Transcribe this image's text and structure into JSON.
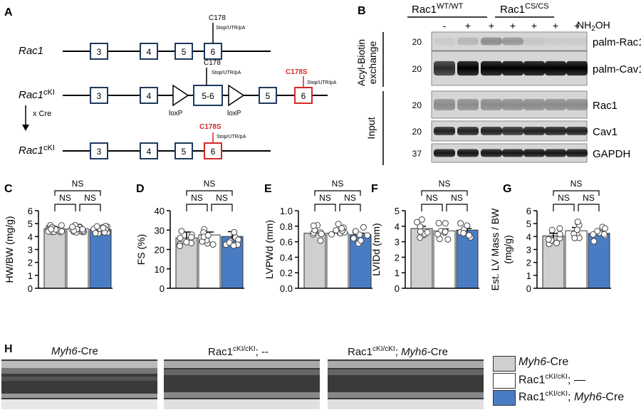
{
  "panels": {
    "A": "A",
    "B": "B",
    "C": "C",
    "D": "D",
    "E": "E",
    "F": "F",
    "G": "G",
    "H": "H"
  },
  "panel_a": {
    "rows": [
      {
        "gene": "Rac1",
        "sup": "",
        "exons": [
          "3",
          "4",
          "5",
          "6"
        ],
        "c178": "C178",
        "stop": "Stop/UTR/pA"
      },
      {
        "gene": "Rac1",
        "sup": "cKI",
        "exons": [
          "3",
          "4",
          "5-6",
          "5",
          "6"
        ],
        "c178": "C178",
        "stop": "Stop/UTR/pA",
        "c178s": "C178S",
        "stop2": "Stop/UTR/pA",
        "loxp": "loxP"
      },
      {
        "gene": "Rac1",
        "sup": "cKI",
        "exons": [
          "3",
          "4",
          "5",
          "6"
        ],
        "c178s": "C178S",
        "stop": "Stop/UTR/pA"
      }
    ],
    "cross": "x Cre"
  },
  "panel_b": {
    "group1": {
      "base": "Rac1",
      "sup": "WT/WT"
    },
    "group2": {
      "base": "Rac1",
      "sup": "CS/CS"
    },
    "nh2oh": {
      "pre": "NH",
      "sub": "2",
      "post": "OH"
    },
    "lanes": [
      "-",
      "+",
      "+",
      "+",
      "+",
      "+",
      "+"
    ],
    "section1": [
      "Acyl-Biotin",
      "exchange"
    ],
    "section2": "Input",
    "blots": [
      {
        "label": "palm-Rac1",
        "mw": "20"
      },
      {
        "label": "palm-Cav1",
        "mw": "20"
      },
      {
        "label": "Rac1",
        "mw": "20"
      },
      {
        "label": "Cav1",
        "mw": "20"
      },
      {
        "label": "GAPDH",
        "mw": "37"
      }
    ]
  },
  "chart_data": [
    {
      "type": "bar",
      "panel": "C",
      "ylabel": "HW/BW (mg/g)",
      "ylim": [
        0,
        6
      ],
      "yticks": [
        "0",
        "1",
        "2",
        "3",
        "4",
        "5",
        "6"
      ],
      "values": [
        4.6,
        4.6,
        4.55
      ],
      "sem": [
        0.1,
        0.07,
        0.07
      ],
      "sig": "NS",
      "points": "dense"
    },
    {
      "type": "bar",
      "panel": "D",
      "ylabel": "FS (%)",
      "ylim": [
        0,
        40
      ],
      "yticks": [
        "0",
        "10",
        "20",
        "30",
        "40"
      ],
      "values": [
        26,
        27.5,
        26.7
      ],
      "sem": [
        3,
        1.5,
        2.5
      ],
      "sig": "NS"
    },
    {
      "type": "bar",
      "panel": "E",
      "ylabel": "LVPWd (mm)",
      "ylim": [
        0,
        1.0
      ],
      "yticks": [
        "0.0",
        "0.2",
        "0.4",
        "0.6",
        "0.8",
        "1.0"
      ],
      "values": [
        0.71,
        0.71,
        0.69
      ],
      "sem": [
        0.02,
        0.025,
        0.02
      ],
      "sig": "NS"
    },
    {
      "type": "bar",
      "panel": "F",
      "ylabel": "LVIDd (mm)",
      "ylim": [
        0,
        5
      ],
      "yticks": [
        "0",
        "1",
        "2",
        "3",
        "4",
        "5"
      ],
      "values": [
        3.85,
        3.7,
        3.75
      ],
      "sem": [
        0.15,
        0.12,
        0.1
      ],
      "sig": "NS"
    },
    {
      "type": "bar",
      "panel": "G",
      "ylabel": "Est. LV Mass / BW (mg/g)",
      "ylim": [
        0,
        6
      ],
      "yticks": [
        "0",
        "1",
        "2",
        "3",
        "4",
        "5",
        "6"
      ],
      "values": [
        4.05,
        4.45,
        4.25
      ],
      "sem": [
        0.2,
        0.25,
        0.15
      ],
      "sig": "NS"
    }
  ],
  "colors": {
    "bar1": "#cfcfcf",
    "bar2": "#ffffff",
    "bar3": "#4a7cc4",
    "red": "#d42a2a"
  },
  "panel_h": {
    "titles": [
      {
        "italic": "Myh6",
        "post": "-Cre"
      },
      {
        "base": "Rac1",
        "sup": "cKI/cKI",
        "post": "; --"
      },
      {
        "base": "Rac1",
        "sup": "cKI/cKI",
        "post": "; ",
        "italic": "Myh6",
        "post2": "-Cre"
      }
    ],
    "legend": [
      {
        "italic": "Myh6",
        "post": "-Cre"
      },
      {
        "base": "Rac1",
        "sup": "cKI/cKI",
        "post": "; —"
      },
      {
        "base": "Rac1",
        "sup": "cKI/cKI",
        "post": "; ",
        "italic": "Myh6",
        "post2": "-Cre"
      }
    ]
  }
}
